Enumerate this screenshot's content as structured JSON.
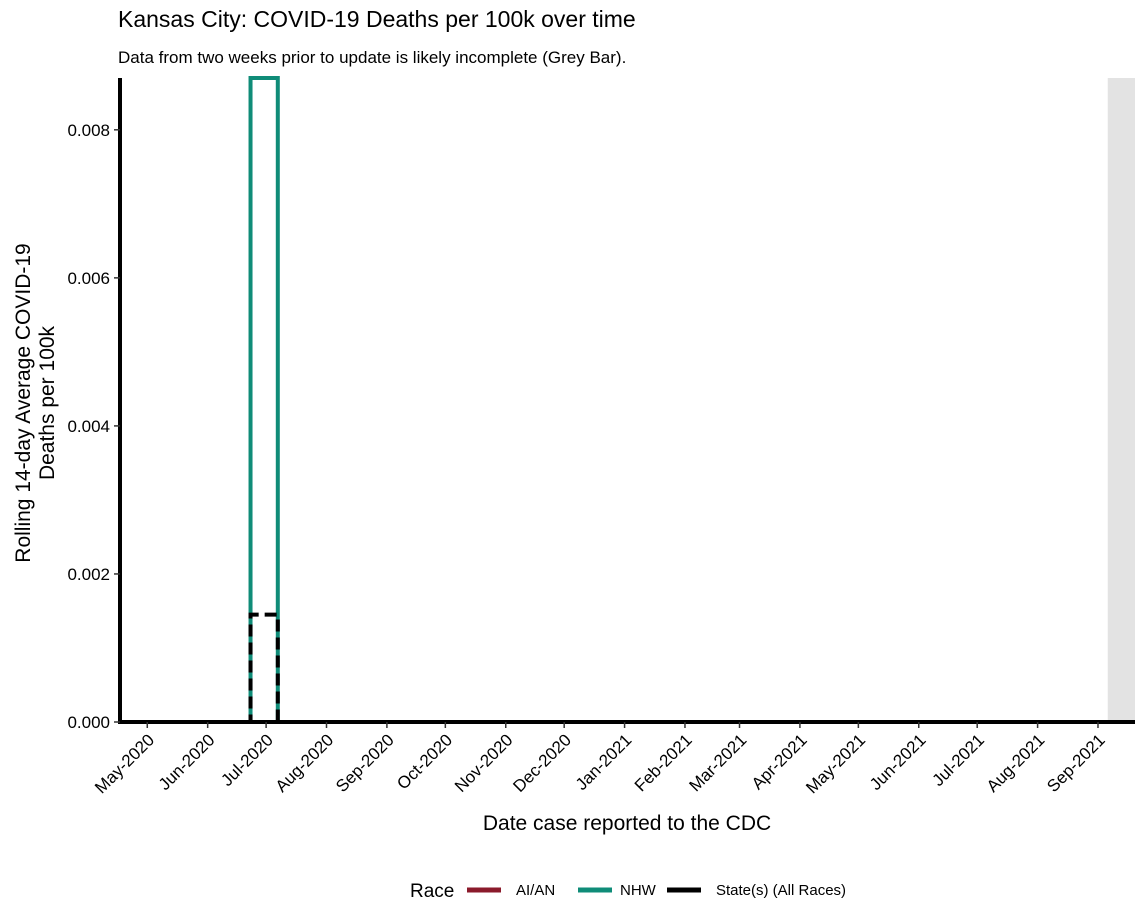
{
  "chart_data": {
    "type": "line",
    "title": "Kansas City: COVID-19 Deaths per 100k over time",
    "subtitle": "Data from two weeks prior to update is likely incomplete (Grey Bar).",
    "xlabel": "Date case reported to the CDC",
    "ylabel_lines": [
      "Rolling 14-day Average COVID-19",
      "Deaths per 100k"
    ],
    "x_range": [
      "2020-04-17",
      "2021-09-20"
    ],
    "ylim": [
      0,
      0.0087
    ],
    "y_ticks": [
      0.0,
      0.002,
      0.004,
      0.006,
      0.008
    ],
    "y_tick_labels": [
      "0.000",
      "0.002",
      "0.004",
      "0.006",
      "0.008"
    ],
    "x_ticks": [
      {
        "date": "2020-05-01",
        "label": "May-2020"
      },
      {
        "date": "2020-06-01",
        "label": "Jun-2020"
      },
      {
        "date": "2020-07-01",
        "label": "Jul-2020"
      },
      {
        "date": "2020-08-01",
        "label": "Aug-2020"
      },
      {
        "date": "2020-09-01",
        "label": "Sep-2020"
      },
      {
        "date": "2020-10-01",
        "label": "Oct-2020"
      },
      {
        "date": "2020-11-01",
        "label": "Nov-2020"
      },
      {
        "date": "2020-12-01",
        "label": "Dec-2020"
      },
      {
        "date": "2021-01-01",
        "label": "Jan-2021"
      },
      {
        "date": "2021-02-01",
        "label": "Feb-2021"
      },
      {
        "date": "2021-03-01",
        "label": "Mar-2021"
      },
      {
        "date": "2021-04-01",
        "label": "Apr-2021"
      },
      {
        "date": "2021-05-01",
        "label": "May-2021"
      },
      {
        "date": "2021-06-01",
        "label": "Jun-2021"
      },
      {
        "date": "2021-07-01",
        "label": "Jul-2021"
      },
      {
        "date": "2021-08-01",
        "label": "Aug-2021"
      },
      {
        "date": "2021-09-01",
        "label": "Sep-2021"
      }
    ],
    "grey_bar": {
      "start": "2021-09-06",
      "end": "2021-09-20",
      "color": "#e3e3e3"
    },
    "series": [
      {
        "name": "AI/AN",
        "color": "#8b1a2b",
        "dash": "solid",
        "points": [
          [
            "2020-04-17",
            0
          ],
          [
            "2021-09-20",
            0
          ]
        ]
      },
      {
        "name": "NHW",
        "color": "#0f8c78",
        "dash": "solid",
        "points": [
          [
            "2020-04-17",
            0
          ],
          [
            "2020-06-23",
            0
          ],
          [
            "2020-06-23",
            0.0029
          ],
          [
            "2020-06-23",
            0.0058
          ],
          [
            "2020-06-23",
            0.0087
          ],
          [
            "2020-07-07",
            0.0087
          ],
          [
            "2020-07-07",
            0.0058
          ],
          [
            "2020-07-07",
            0.0029
          ],
          [
            "2020-07-07",
            0
          ],
          [
            "2021-09-20",
            0
          ]
        ]
      },
      {
        "name": "State(s) (All Races)",
        "color": "#000000",
        "dash": "dashed",
        "points": [
          [
            "2020-04-17",
            0
          ],
          [
            "2020-06-23",
            0
          ],
          [
            "2020-06-23",
            0.00145
          ],
          [
            "2020-07-07",
            0.00145
          ],
          [
            "2020-07-07",
            0
          ],
          [
            "2021-09-20",
            0
          ]
        ]
      }
    ],
    "legend": {
      "title": "Race",
      "position": "bottom",
      "items": [
        {
          "label": "AI/AN",
          "color": "#8b1a2b"
        },
        {
          "label": "NHW",
          "color": "#0f8c78"
        },
        {
          "label": "State(s) (All Races)",
          "color": "#000000"
        }
      ]
    }
  }
}
